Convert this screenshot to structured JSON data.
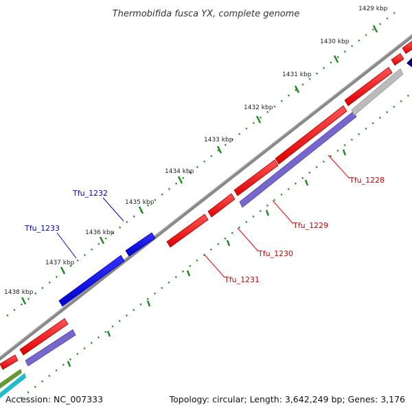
{
  "title": "Thermobifida fusca YX, complete genome",
  "footer": {
    "accession": "Accession: NC_007333",
    "summary": "Topology: circular; Length: 3,642,249 bp; Genes: 3,176"
  },
  "ticks": [
    "1429 kbp",
    "1430 kbp",
    "1431 kbp",
    "1432 kbp",
    "1433 kbp",
    "1434 kbp",
    "1435 kbp",
    "1436 kbp",
    "1437 kbp",
    "1438 kbp"
  ],
  "genes": {
    "forward_labels": [
      "Tfu_1232",
      "Tfu_1233"
    ],
    "reverse_labels": [
      "Tfu_1228",
      "Tfu_1229",
      "Tfu_1230",
      "Tfu_1231"
    ]
  },
  "colors": {
    "forward_gene": "#0000ee",
    "reverse_gene": "#ee0000",
    "rna_gene": "#7766cc",
    "backbone": "#888888",
    "tick": "#228822"
  }
}
